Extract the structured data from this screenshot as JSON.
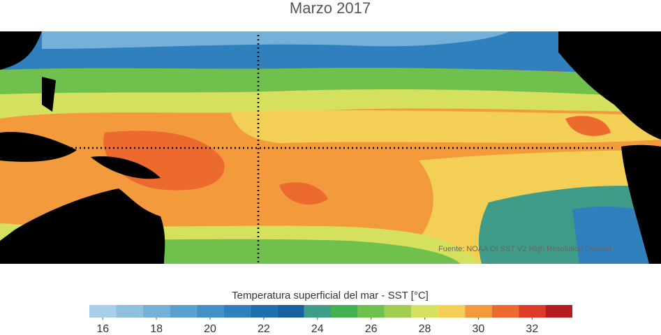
{
  "title": "Marzo 2017",
  "source": "Fuente: NOAA OI SST V2 High Resolution Dataset",
  "colorbar": {
    "label": "Temperatura superficial del mar - SST  [°C]",
    "bins": [
      15.5,
      16.5,
      17.5,
      18.5,
      19.5,
      20.5,
      21.5,
      22.5,
      23.5,
      24.5,
      25.5,
      26.5,
      27.5,
      28.5,
      29.5,
      30.5,
      31.5,
      32.5,
      33.5
    ],
    "colors": [
      "#a9cfe8",
      "#8fc0e0",
      "#74b0d8",
      "#5aa0cf",
      "#4390c6",
      "#2f80bc",
      "#1f6fb0",
      "#1b5f9e",
      "#3f9c88",
      "#45b050",
      "#6fc04c",
      "#a1cd52",
      "#d6e05f",
      "#f3cf55",
      "#f39a3c",
      "#ec6a2e",
      "#dd3b27",
      "#b21d22"
    ],
    "ticks": [
      16,
      18,
      20,
      22,
      24,
      26,
      28,
      30,
      32
    ]
  }
}
